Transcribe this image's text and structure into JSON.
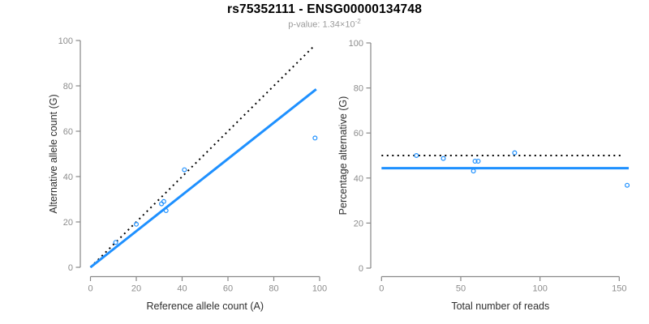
{
  "header": {
    "title": "rs75352111 - ENSG00000134748",
    "subtitle_prefix": "p-value: 1.34×10",
    "subtitle_exponent": "-2"
  },
  "colors": {
    "accent_blue": "#1E90FF",
    "line_black": "#000000",
    "axis_gray": "#878787",
    "tick_label_gray": "#8C8C8C",
    "axis_title_color": "#2E2E2E",
    "subtitle_gray": "#9A9A9A"
  },
  "chart_data": [
    {
      "id": "counts-scatter",
      "type": "scatter",
      "title": "",
      "xlabel": "Reference allele count (A)",
      "ylabel": "Alternative allele count (G)",
      "xlim": [
        0,
        100
      ],
      "ylim": [
        0,
        100
      ],
      "xticks": [
        0,
        20,
        40,
        60,
        80,
        100
      ],
      "yticks": [
        0,
        20,
        40,
        60,
        80,
        100
      ],
      "grid": false,
      "legend": "none",
      "points": [
        [
          11,
          11
        ],
        [
          20,
          19
        ],
        [
          31,
          28
        ],
        [
          32,
          29
        ],
        [
          33,
          25
        ],
        [
          41,
          43
        ],
        [
          98,
          57
        ]
      ],
      "lines": [
        {
          "name": "identity-line",
          "style": "dotted",
          "color": "#000000",
          "x1": 0,
          "y1": 0,
          "x2": 97.5,
          "y2": 97.5
        },
        {
          "name": "fit-line",
          "style": "solid",
          "color": "#1E90FF",
          "x1": 0,
          "y1": 0,
          "x2": 98.5,
          "y2": 78.5
        }
      ]
    },
    {
      "id": "percentage-scatter",
      "type": "scatter",
      "title": "",
      "xlabel": "Total number of reads",
      "ylabel": "Percentage alternative (G)",
      "xlim": [
        0,
        157
      ],
      "ylim": [
        0,
        100
      ],
      "xticks": [
        0,
        50,
        100,
        150
      ],
      "yticks": [
        0,
        20,
        40,
        60,
        80,
        100
      ],
      "grid": false,
      "legend": "none",
      "points": [
        [
          22,
          50
        ],
        [
          39,
          48.7
        ],
        [
          59,
          47.5
        ],
        [
          61,
          47.5
        ],
        [
          58,
          43.1
        ],
        [
          84,
          51.2
        ],
        [
          155,
          36.8
        ]
      ],
      "lines": [
        {
          "name": "expected-50pct-line",
          "style": "dotted",
          "color": "#000000",
          "x1": 0,
          "y1": 50,
          "x2": 152.5,
          "y2": 50
        },
        {
          "name": "observed-mean-line",
          "style": "solid",
          "color": "#1E90FF",
          "x1": 0,
          "y1": 44.4,
          "x2": 156,
          "y2": 44.4
        }
      ]
    }
  ]
}
